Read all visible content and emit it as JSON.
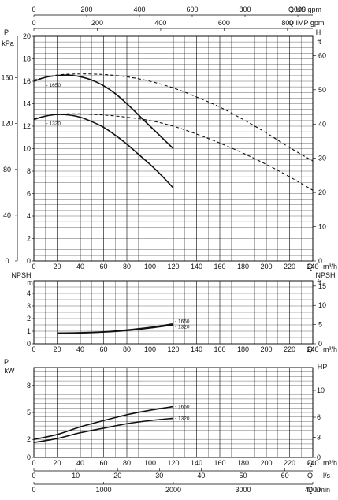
{
  "chart_data": [
    {
      "type": "line",
      "panel": "head",
      "x_axis": {
        "label": "Q m³/h",
        "range": [
          0,
          240
        ],
        "ticks": [
          0,
          20,
          40,
          60,
          80,
          100,
          120,
          140,
          160,
          180,
          200,
          220,
          240
        ]
      },
      "y_left": {
        "label": "H m",
        "range": [
          0,
          20
        ],
        "ticks": [
          0,
          2,
          4,
          6,
          8,
          10,
          12,
          14,
          16,
          18,
          20
        ]
      },
      "y_left_outer": {
        "label_top": "P",
        "label_bottom": "kPa",
        "ticks": [
          0,
          40,
          80,
          120,
          160
        ]
      },
      "y_right": {
        "label": "H ft",
        "ticks": [
          0,
          10,
          20,
          30,
          40,
          50,
          60
        ]
      },
      "top_axis_us": {
        "label": "Q US gpm",
        "ticks": [
          0,
          200,
          400,
          600,
          800,
          1000
        ]
      },
      "top_axis_imp": {
        "label": "Q IMP gpm",
        "ticks": [
          0,
          200,
          400,
          600,
          800
        ]
      },
      "grid": true,
      "series": [
        {
          "name": "1650",
          "style": "solid",
          "x": [
            0,
            10,
            20,
            30,
            40,
            50,
            60,
            70,
            80,
            90,
            100,
            110,
            120
          ],
          "y": [
            16.0,
            16.35,
            16.5,
            16.55,
            16.4,
            16.1,
            15.6,
            14.9,
            14.0,
            13.0,
            12.0,
            11.0,
            10.0
          ]
        },
        {
          "name": "1650",
          "style": "dashed",
          "x": [
            0,
            20,
            40,
            60,
            80,
            100,
            120,
            140,
            160,
            180,
            200,
            220,
            240
          ],
          "y": [
            16.1,
            16.55,
            16.65,
            16.6,
            16.4,
            16.0,
            15.4,
            14.6,
            13.7,
            12.6,
            11.4,
            10.1,
            8.9
          ]
        },
        {
          "name": "1320",
          "style": "solid",
          "x": [
            0,
            10,
            20,
            30,
            40,
            50,
            60,
            70,
            80,
            90,
            100,
            110,
            120
          ],
          "y": [
            12.6,
            12.9,
            13.05,
            13.0,
            12.8,
            12.4,
            11.9,
            11.2,
            10.4,
            9.5,
            8.6,
            7.6,
            6.5
          ]
        },
        {
          "name": "1320",
          "style": "dashed",
          "x": [
            0,
            20,
            40,
            60,
            80,
            100,
            120,
            140,
            160,
            180,
            200,
            220,
            240
          ],
          "y": [
            12.7,
            13.05,
            13.1,
            13.0,
            12.8,
            12.5,
            12.0,
            11.3,
            10.5,
            9.6,
            8.6,
            7.5,
            6.3
          ]
        }
      ]
    },
    {
      "type": "line",
      "panel": "npsh",
      "x_axis": {
        "label": "Q m³/h",
        "range": [
          0,
          240
        ],
        "ticks": [
          0,
          20,
          40,
          60,
          80,
          100,
          120,
          140,
          160,
          180,
          200,
          220,
          240
        ]
      },
      "y_left": {
        "label_top": "NPSH",
        "label_bottom": "m",
        "range": [
          0,
          5
        ],
        "ticks": [
          0,
          1,
          2,
          3,
          4
        ]
      },
      "y_right": {
        "label_top": "NPSH",
        "label_bottom": "ft",
        "ticks": [
          0,
          5,
          10,
          15
        ]
      },
      "grid": true,
      "series": [
        {
          "name": "1650",
          "style": "solid",
          "x": [
            20,
            40,
            60,
            80,
            100,
            120
          ],
          "y": [
            0.85,
            0.88,
            0.95,
            1.1,
            1.3,
            1.58
          ]
        },
        {
          "name": "1320",
          "style": "solid",
          "x": [
            20,
            40,
            60,
            80,
            100,
            120
          ],
          "y": [
            0.83,
            0.86,
            0.93,
            1.05,
            1.25,
            1.5
          ]
        }
      ],
      "labels": [
        "1650",
        "1320"
      ]
    },
    {
      "type": "line",
      "panel": "power",
      "x_axis": {
        "label": "Q m³/h",
        "range": [
          0,
          240
        ],
        "ticks": [
          0,
          20,
          40,
          60,
          80,
          100,
          120,
          140,
          160,
          180,
          200,
          220,
          240
        ]
      },
      "y_left": {
        "label_top": "P",
        "label_bottom": "kW",
        "range": [
          0,
          10
        ],
        "ticks": [
          0,
          2,
          5,
          8
        ]
      },
      "y_right": {
        "label": "HP",
        "ticks": [
          0,
          3,
          6,
          10
        ]
      },
      "bottom_axis_ls": {
        "label": "Q l/s",
        "ticks": [
          0,
          10,
          20,
          30,
          40,
          50,
          60
        ]
      },
      "bottom_axis_lmin": {
        "label": "Q l/min",
        "ticks": [
          0,
          1000,
          2000,
          3000,
          4000
        ]
      },
      "grid": true,
      "series": [
        {
          "name": "1650",
          "style": "solid",
          "x": [
            0,
            20,
            40,
            60,
            80,
            100,
            120
          ],
          "y": [
            2.0,
            2.55,
            3.4,
            4.1,
            4.75,
            5.25,
            5.65
          ]
        },
        {
          "name": "1320",
          "style": "solid",
          "x": [
            0,
            20,
            40,
            60,
            80,
            100,
            120
          ],
          "y": [
            1.65,
            2.1,
            2.75,
            3.25,
            3.75,
            4.1,
            4.35
          ]
        }
      ]
    }
  ]
}
